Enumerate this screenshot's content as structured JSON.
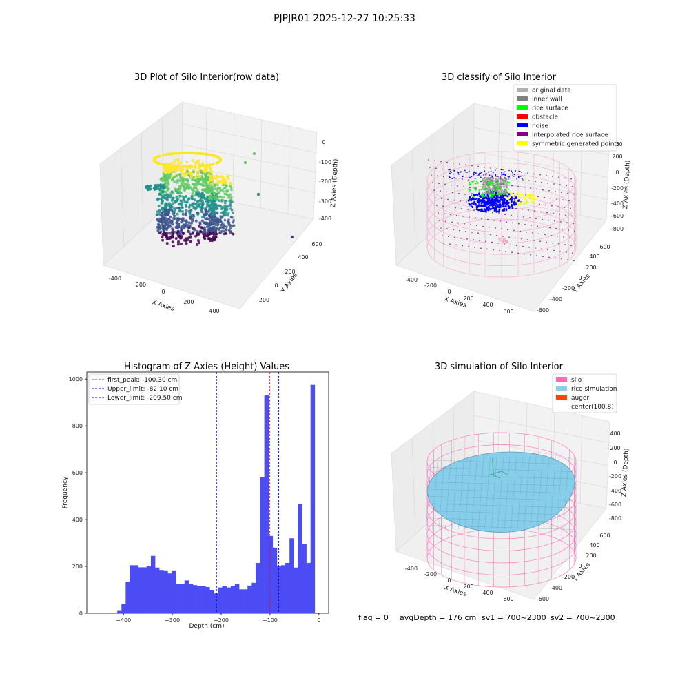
{
  "figure": {
    "suptitle": "PJPJR01 2025-12-27 10:25:33",
    "footer": {
      "flag": "flag = 0",
      "avg_depth": "avgDepth = 176 cm",
      "sv1": "sv1 = 700~2300",
      "sv2": "sv2 = 700~2300"
    }
  },
  "chart_data": [
    {
      "type": "scatter",
      "title": "3D Plot of Silo Interior(row data)",
      "xlabel": "X Axies",
      "ylabel": "Y Axies",
      "zlabel": "Z Axies (Depth)",
      "x_ticks": [
        "-400",
        "-200",
        "0",
        "200",
        "400"
      ],
      "y_ticks": [
        "-200",
        "0",
        "200",
        "400",
        "600"
      ],
      "z_ticks": [
        "0",
        "-100",
        "-200",
        "-300",
        "-400"
      ],
      "colormap": [
        "#440154",
        "#3b528b",
        "#21918c",
        "#5ec962",
        "#fde725"
      ]
    },
    {
      "type": "scatter",
      "title": "3D classify of Silo Interior",
      "xlabel": "X Axies",
      "ylabel": "Y Axies",
      "zlabel": "Z Axies (Depth)",
      "x_ticks": [
        "-400",
        "-200",
        "0",
        "200",
        "400",
        "600"
      ],
      "y_ticks": [
        "-600",
        "-400",
        "-200",
        "0",
        "200",
        "400",
        "600"
      ],
      "z_ticks": [
        "200",
        "0",
        "-200",
        "-400",
        "-600",
        "-800"
      ],
      "legend": [
        {
          "label": "original data",
          "color": "#b0b0b0"
        },
        {
          "label": "inner wall",
          "color": "#808080"
        },
        {
          "label": "rice surface",
          "color": "#00ff00"
        },
        {
          "label": "obstacle",
          "color": "#ff0000"
        },
        {
          "label": "noise",
          "color": "#0000ff"
        },
        {
          "label": "interpolated rice surface",
          "color": "#800080"
        },
        {
          "label": "symmetric generated points",
          "color": "#ffff00"
        }
      ],
      "silo_color": "#f4a6c8"
    },
    {
      "type": "bar",
      "title": "Histogram of Z-Axies (Height) Values",
      "xlabel": "Depth (cm)",
      "ylabel": "Frequency",
      "xlim": [
        -475,
        20
      ],
      "ylim": [
        0,
        1030
      ],
      "x_ticks": [
        -400,
        -300,
        -200,
        -100,
        0
      ],
      "x_tick_labels": [
        "−400",
        "−300",
        "−200",
        "−100",
        "0"
      ],
      "y_ticks": [
        0,
        200,
        400,
        600,
        800,
        1000
      ],
      "bin_width": 8.6,
      "bin_start": -412.7,
      "values": [
        10,
        40,
        135,
        205,
        205,
        196,
        196,
        200,
        245,
        195,
        182,
        180,
        170,
        180,
        125,
        125,
        140,
        126,
        120,
        115,
        115,
        112,
        100,
        85,
        110,
        115,
        110,
        115,
        125,
        102,
        102,
        118,
        130,
        215,
        580,
        930,
        330,
        280,
        200,
        205,
        215,
        320,
        195,
        465,
        295,
        215,
        975
      ],
      "bar_color": "#4c4cf5",
      "vlines": [
        {
          "label": "first_peak: -100.30 cm",
          "x": -100.3,
          "color": "#ff0000"
        },
        {
          "label": "Upper_limit: -82.10 cm",
          "x": -82.1,
          "color": "#0000ff"
        },
        {
          "label": "Lower_limit: -209.50 cm",
          "x": -209.5,
          "color": "#0000ff"
        }
      ]
    },
    {
      "type": "area",
      "title": "3D simulation of Silo Interior",
      "xlabel": "X Axies",
      "ylabel": "Y Axies",
      "zlabel": "Z Axies (Depth)",
      "x_ticks": [
        "-400",
        "-200",
        "0",
        "200",
        "400",
        "600"
      ],
      "y_ticks": [
        "-600",
        "-400",
        "-200",
        "0",
        "200",
        "400",
        "600"
      ],
      "z_ticks": [
        "400",
        "200",
        "0",
        "-200",
        "-400",
        "-600",
        "-800"
      ],
      "legend": [
        {
          "label": "silo",
          "color": "#ff69b4"
        },
        {
          "label": "rice simulation",
          "color": "#87ceeb"
        },
        {
          "label": "auger",
          "color": "#ff4500"
        },
        {
          "label": "center(100,8)",
          "color": ""
        }
      ]
    }
  ]
}
